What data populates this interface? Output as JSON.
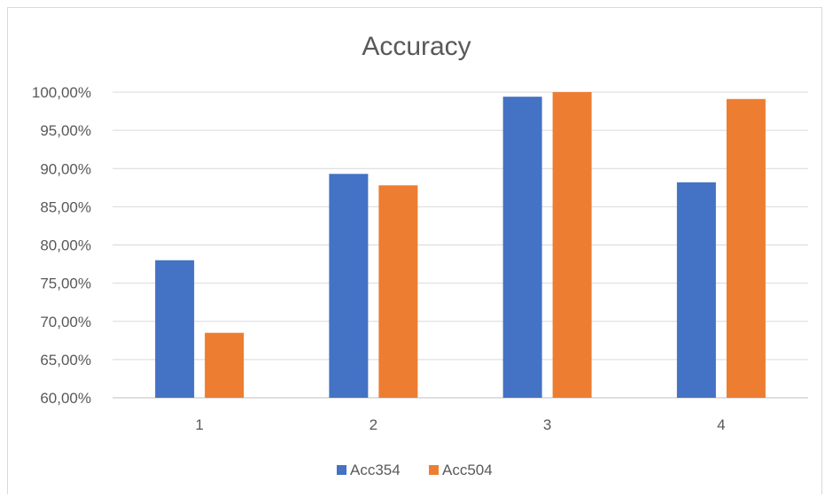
{
  "chart_data": {
    "type": "bar",
    "title": "Accuracy",
    "xlabel": "",
    "ylabel": "",
    "categories": [
      "1",
      "2",
      "3",
      "4"
    ],
    "series": [
      {
        "name": "Acc354",
        "color": "#4472c4",
        "values": [
          78.0,
          89.3,
          99.4,
          88.2
        ]
      },
      {
        "name": "Acc504",
        "color": "#ed7d31",
        "values": [
          68.5,
          87.8,
          100.0,
          99.1
        ]
      }
    ],
    "ylim": [
      60,
      100
    ],
    "yticks": [
      "60,00%",
      "65,00%",
      "70,00%",
      "75,00%",
      "80,00%",
      "85,00%",
      "90,00%",
      "95,00%",
      "100,00%"
    ],
    "grid": true,
    "legend": "bottom"
  }
}
